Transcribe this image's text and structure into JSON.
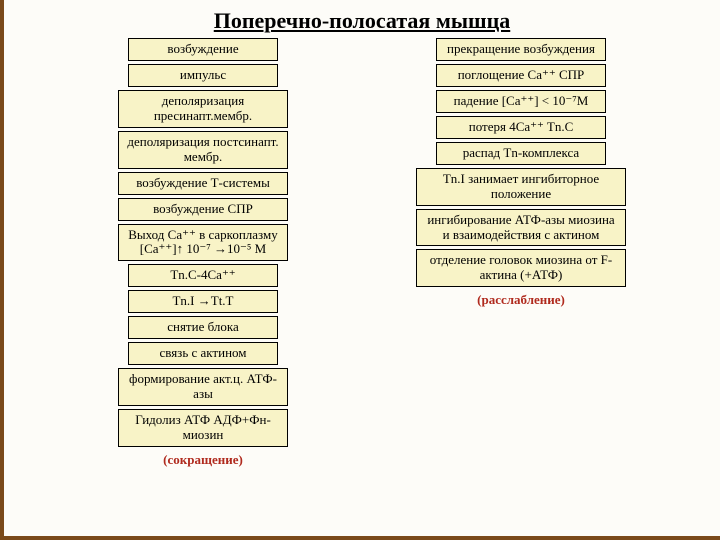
{
  "title": "Поперечно-полосатая мышца",
  "left": {
    "b1": "возбуждение",
    "b2": "импульс",
    "b3": "деполяризация пресинапт.мембр.",
    "b4": "деполяризация постсинапт. мембр.",
    "b5": "возбуждение Т-системы",
    "b6": "возбуждение СПР",
    "b7": "Выход Ca⁺⁺ в саркоплазму [Ca⁺⁺]↑ 10⁻⁷ →10⁻⁵ M",
    "b8": "Tn.C-4Ca⁺⁺",
    "b9": "Tn.I →Tt.T",
    "b10": "снятие блока",
    "b11": "связь с актином",
    "b12": "формирование акт.ц. АТФ-азы",
    "b13": "Гидолиз АТФ АДФ+Фн-миозин",
    "foot": "(сокращение)"
  },
  "right": {
    "b1": "прекращение возбуждения",
    "b2": "поглощение Ca⁺⁺ СПР",
    "b3": "падение [Ca⁺⁺] < 10⁻⁷M",
    "b4": "потеря 4Ca⁺⁺ Tn.C",
    "b5": "распад Tn-комплекса",
    "b6": "Tn.I занимает ингибиторное положение",
    "b7": "ингибирование АТФ-азы миозина и взаимодействия с актином",
    "b8": "отделение головок миозина от F-актина (+АТФ)",
    "foot": "(расслабление)"
  },
  "colors": {
    "box_bg": "#f8f3c7",
    "border": "#000000",
    "page_bg": "#fdfcf8",
    "accent_border": "#7a4a1a",
    "foot_color": "#b02a1e"
  }
}
